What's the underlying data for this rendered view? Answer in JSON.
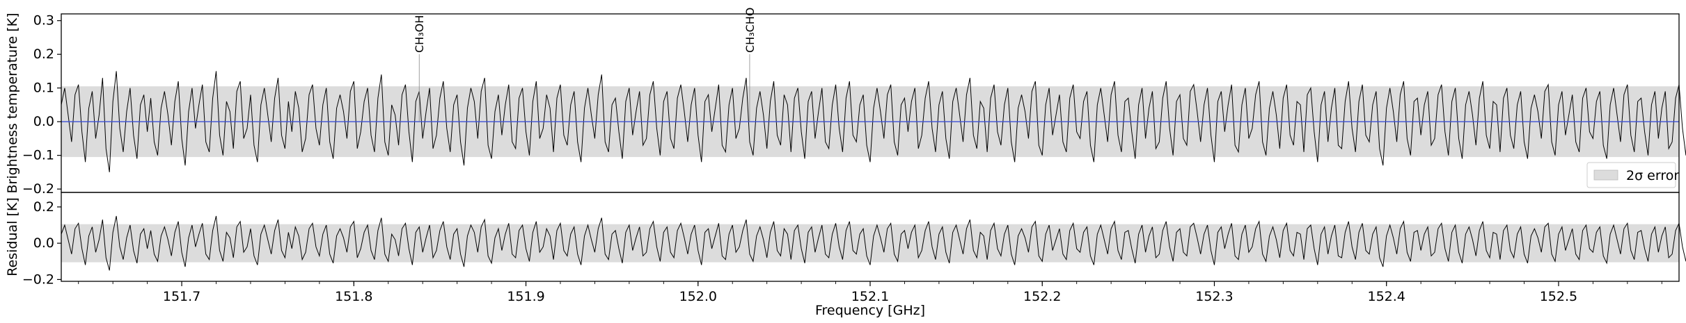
{
  "chart_data": [
    {
      "type": "line",
      "panel": "spectrum",
      "xlabel": "",
      "ylabel": "Brightness temperature [K]",
      "xlim": [
        151.63,
        152.57
      ],
      "ylim": [
        -0.21,
        0.32
      ],
      "yticks": [
        -0.2,
        -0.1,
        0.0,
        0.1,
        0.2,
        0.3
      ],
      "ytick_labels": [
        "−0.2",
        "−0.1",
        "0.0",
        "0.1",
        "0.2",
        "0.3"
      ],
      "error_band": [
        -0.105,
        0.105
      ],
      "legend": {
        "label": "2σ error",
        "placement": "lower-right"
      },
      "line_labels": [
        {
          "label": "CH₃OH",
          "x": 151.838
        },
        {
          "label": "CH₃CHO",
          "x": 152.03
        }
      ],
      "model_line": {
        "color": "#3b4fd6",
        "baseline": 0.0
      },
      "series": [
        {
          "color": "#000000",
          "x_start": 151.63,
          "x_step": 0.002,
          "values": [
            0.05,
            0.1,
            0.02,
            -0.06,
            0.08,
            0.11,
            -0.03,
            -0.12,
            0.04,
            0.09,
            -0.05,
            0.02,
            0.13,
            -0.08,
            -0.15,
            0.06,
            0.15,
            -0.02,
            -0.09,
            0.03,
            0.1,
            -0.04,
            -0.11,
            0.05,
            0.08,
            -0.03,
            0.07,
            -0.06,
            -0.1,
            0.04,
            0.09,
            0.02,
            -0.07,
            0.06,
            0.12,
            -0.05,
            -0.13,
            0.03,
            0.1,
            -0.02,
            0.05,
            0.11,
            -0.06,
            -0.09,
            0.07,
            0.15,
            -0.04,
            -0.1,
            0.06,
            0.03,
            -0.08,
            0.09,
            0.12,
            -0.05,
            -0.02,
            0.08,
            -0.07,
            -0.12,
            0.05,
            0.1,
            0.02,
            -0.06,
            0.07,
            0.13,
            -0.04,
            -0.08,
            0.06,
            -0.03,
            0.09,
            0.04,
            -0.09,
            -0.05,
            0.08,
            0.11,
            -0.02,
            -0.07,
            0.05,
            0.1,
            -0.06,
            -0.11,
            0.04,
            0.08,
            0.03,
            -0.05,
            0.09,
            0.12,
            -0.08,
            -0.03,
            0.06,
            0.1,
            -0.04,
            -0.09,
            0.07,
            0.14,
            -0.06,
            -0.1,
            0.05,
            0.02,
            -0.07,
            0.08,
            0.11,
            -0.03,
            -0.12,
            0.06,
            0.09,
            -0.05,
            0.03,
            0.1,
            -0.08,
            -0.04,
            0.07,
            0.12,
            -0.02,
            -0.09,
            0.05,
            0.08,
            -0.06,
            -0.13,
            0.04,
            0.1,
            0.06,
            -0.05,
            0.09,
            0.13,
            -0.07,
            -0.11,
            0.03,
            0.08,
            -0.04,
            0.05,
            0.11,
            -0.06,
            -0.08,
            0.07,
            0.1,
            -0.03,
            -0.1,
            0.06,
            0.12,
            -0.05,
            -0.02,
            0.08,
            0.04,
            -0.09,
            0.07,
            0.11,
            -0.04,
            -0.07,
            0.05,
            0.09,
            -0.06,
            -0.12,
            0.04,
            0.1,
            0.02,
            -0.05,
            0.08,
            0.14,
            -0.06,
            -0.09,
            0.05,
            0.07,
            -0.03,
            -0.11,
            0.06,
            0.1,
            -0.04,
            0.03,
            0.09,
            -0.07,
            -0.05,
            0.08,
            0.12,
            -0.02,
            -0.1,
            0.06,
            0.09,
            -0.05,
            -0.08,
            0.07,
            0.11,
            0.03,
            -0.06,
            0.05,
            0.1,
            -0.04,
            -0.12,
            0.06,
            0.08,
            -0.03,
            0.04,
            0.11,
            -0.07,
            -0.09,
            0.05,
            0.1,
            -0.05,
            -0.02,
            0.07,
            0.13,
            -0.06,
            -0.1,
            0.04,
            0.09,
            0.02,
            -0.08,
            0.06,
            0.12,
            -0.04,
            -0.07,
            0.08,
            0.05,
            -0.09,
            0.07,
            0.1,
            -0.03,
            -0.11,
            0.06,
            0.09,
            -0.05,
            0.03,
            0.1,
            -0.06,
            -0.08,
            0.05,
            0.11,
            -0.02,
            -0.09,
            0.07,
            0.12,
            -0.04,
            -0.06,
            0.05,
            0.08,
            -0.07,
            -0.12,
            0.04,
            0.1,
            0.03,
            -0.05,
            0.08,
            0.11,
            -0.06,
            -0.1,
            0.05,
            0.07,
            -0.03,
            0.06,
            0.1,
            -0.08,
            -0.04,
            0.07,
            0.12,
            -0.02,
            -0.09,
            0.05,
            0.09,
            -0.05,
            -0.11,
            0.06,
            0.1,
            0.02,
            -0.06,
            0.08,
            0.13,
            -0.04,
            -0.08,
            0.06,
            0.04,
            -0.09,
            0.07,
            0.11,
            -0.03,
            -0.07,
            0.05,
            0.1,
            -0.06,
            -0.12,
            0.04,
            0.08,
            0.03,
            -0.05,
            0.09,
            0.12,
            -0.07,
            -0.1,
            0.05,
            0.1,
            -0.04,
            0.02,
            0.08,
            -0.06,
            -0.09,
            0.07,
            0.11,
            -0.03,
            -0.05,
            0.06,
            0.09,
            -0.07,
            -0.12,
            0.05,
            0.1,
            0.02,
            -0.06,
            0.08,
            0.12,
            -0.04,
            -0.09,
            0.06,
            0.07,
            -0.03,
            -0.11,
            0.05,
            0.1,
            -0.05,
            0.04,
            0.09,
            -0.08,
            -0.06,
            0.07,
            0.12,
            -0.02,
            -0.1,
            0.06,
            0.08,
            -0.05,
            -0.07,
            0.09,
            0.11,
            0.03,
            -0.06,
            0.05,
            0.1,
            -0.04,
            -0.12,
            0.06,
            0.09,
            -0.03,
            0.05,
            0.11,
            -0.07,
            -0.09,
            0.05,
            0.1,
            -0.05,
            -0.02,
            0.08,
            0.12,
            -0.06,
            -0.1,
            0.04,
            0.09,
            0.02,
            -0.08,
            0.07,
            0.11,
            -0.04,
            -0.07,
            0.06,
            0.05,
            -0.09,
            0.08,
            0.1,
            -0.03,
            -0.12,
            0.05,
            0.09,
            -0.06,
            0.04,
            0.1,
            -0.07,
            -0.08,
            0.06,
            0.12,
            -0.02,
            -0.09,
            0.06,
            0.11,
            -0.04,
            -0.06,
            0.05,
            0.09,
            -0.08,
            -0.13,
            0.04,
            0.1,
            0.03,
            -0.06,
            0.08,
            0.12,
            -0.05,
            -0.1,
            0.06,
            0.07,
            -0.04,
            0.05,
            0.09,
            -0.07,
            -0.05,
            0.08,
            0.11,
            -0.03,
            -0.1,
            0.06,
            0.1,
            -0.05,
            -0.11,
            0.05,
            0.09,
            0.02,
            -0.07,
            0.07,
            0.12,
            -0.04,
            -0.08,
            0.06,
            0.05,
            -0.09,
            0.07,
            0.1,
            -0.04,
            -0.08,
            0.05,
            0.09,
            -0.06,
            -0.11,
            0.04,
            0.08,
            0.03,
            -0.05,
            0.09,
            0.11,
            -0.06,
            -0.1,
            0.05,
            0.09,
            -0.04,
            0.02,
            0.08,
            -0.06,
            -0.09,
            0.07,
            0.1,
            -0.03,
            -0.05,
            0.06,
            0.09,
            -0.07,
            -0.11,
            0.05,
            0.1,
            0.02,
            -0.06,
            0.08,
            0.11,
            -0.04,
            -0.09,
            0.06,
            0.07,
            -0.03,
            -0.1,
            0.05,
            0.09,
            -0.05,
            0.04,
            0.09,
            -0.08,
            -0.06,
            0.07,
            0.11,
            -0.02,
            -0.1,
            0.06,
            0.08,
            -0.05,
            -0.07,
            0.08,
            0.1,
            0.03,
            -0.06,
            0.05,
            0.09
          ]
        }
      ]
    },
    {
      "type": "line",
      "panel": "residual",
      "xlabel": "Frequency [GHz]",
      "ylabel": "Residual [K]",
      "xlim": [
        151.63,
        152.57
      ],
      "ylim": [
        -0.21,
        0.28
      ],
      "yticks": [
        -0.2,
        0.0,
        0.2
      ],
      "ytick_labels": [
        "−0.2",
        "0.0",
        "0.2"
      ],
      "xticks": [
        151.7,
        151.8,
        151.9,
        152.0,
        152.1,
        152.2,
        152.3,
        152.4,
        152.5
      ],
      "xtick_labels": [
        "151.7",
        "151.8",
        "151.9",
        "152.0",
        "152.1",
        "152.2",
        "152.3",
        "152.4",
        "152.5"
      ],
      "error_band": [
        -0.105,
        0.105
      ],
      "series": [
        {
          "color": "#000000",
          "x_start": 151.63,
          "x_step": 0.002,
          "values": [
            0.05,
            0.1,
            0.02,
            -0.06,
            0.08,
            0.11,
            -0.03,
            -0.12,
            0.04,
            0.09,
            -0.05,
            0.02,
            0.13,
            -0.08,
            -0.15,
            0.06,
            0.15,
            -0.02,
            -0.09,
            0.03,
            0.1,
            -0.04,
            -0.11,
            0.05,
            0.08,
            -0.03,
            0.07,
            -0.06,
            -0.1,
            0.04,
            0.09,
            0.02,
            -0.07,
            0.06,
            0.12,
            -0.05,
            -0.13,
            0.03,
            0.1,
            -0.02,
            0.05,
            0.11,
            -0.06,
            -0.09,
            0.07,
            0.15,
            -0.04,
            -0.1,
            0.06,
            0.03,
            -0.08,
            0.09,
            0.12,
            -0.05,
            -0.02,
            0.08,
            -0.07,
            -0.12,
            0.05,
            0.1,
            0.02,
            -0.06,
            0.07,
            0.13,
            -0.04,
            -0.08,
            0.06,
            -0.03,
            0.09,
            0.04,
            -0.09,
            -0.05,
            0.08,
            0.11,
            -0.02,
            -0.07,
            0.05,
            0.1,
            -0.06,
            -0.11,
            0.04,
            0.08,
            0.03,
            -0.05,
            0.09,
            0.12,
            -0.08,
            -0.03,
            0.06,
            0.1,
            -0.04,
            -0.09,
            0.07,
            0.14,
            -0.06,
            -0.1,
            0.05,
            0.02,
            -0.07,
            0.08,
            0.11,
            -0.03,
            -0.12,
            0.06,
            0.09,
            -0.05,
            0.03,
            0.1,
            -0.08,
            -0.04,
            0.07,
            0.12,
            -0.02,
            -0.09,
            0.05,
            0.08,
            -0.06,
            -0.13,
            0.04,
            0.1,
            0.06,
            -0.05,
            0.09,
            0.13,
            -0.07,
            -0.11,
            0.03,
            0.08,
            -0.04,
            0.05,
            0.11,
            -0.06,
            -0.08,
            0.07,
            0.1,
            -0.03,
            -0.1,
            0.06,
            0.12,
            -0.05,
            -0.02,
            0.08,
            0.04,
            -0.09,
            0.07,
            0.11,
            -0.04,
            -0.07,
            0.05,
            0.09,
            -0.06,
            -0.12,
            0.04,
            0.1,
            0.02,
            -0.05,
            0.08,
            0.14,
            -0.06,
            -0.09,
            0.05,
            0.07,
            -0.03,
            -0.11,
            0.06,
            0.1,
            -0.04,
            0.03,
            0.09,
            -0.07,
            -0.05,
            0.08,
            0.12,
            -0.02,
            -0.1,
            0.06,
            0.09,
            -0.05,
            -0.08,
            0.07,
            0.11,
            0.03,
            -0.06,
            0.05,
            0.1,
            -0.04,
            -0.12,
            0.06,
            0.08,
            -0.03,
            0.04,
            0.11,
            -0.07,
            -0.09,
            0.05,
            0.1,
            -0.05,
            -0.02,
            0.07,
            0.13,
            -0.06,
            -0.1,
            0.04,
            0.09,
            0.02,
            -0.08,
            0.06,
            0.12,
            -0.04,
            -0.07,
            0.08,
            0.05,
            -0.09,
            0.07,
            0.1,
            -0.03,
            -0.11,
            0.06,
            0.09,
            -0.05,
            0.03,
            0.1,
            -0.06,
            -0.08,
            0.05,
            0.11,
            -0.02,
            -0.09,
            0.07,
            0.12,
            -0.04,
            -0.06,
            0.05,
            0.08,
            -0.07,
            -0.12,
            0.04,
            0.1,
            0.03,
            -0.05,
            0.08,
            0.11,
            -0.06,
            -0.1,
            0.05,
            0.07,
            -0.03,
            0.06,
            0.1,
            -0.08,
            -0.04,
            0.07,
            0.12,
            -0.02,
            -0.09,
            0.05,
            0.09,
            -0.05,
            -0.11,
            0.06,
            0.1,
            0.02,
            -0.06,
            0.08,
            0.13,
            -0.04,
            -0.08,
            0.06,
            0.04,
            -0.09,
            0.07,
            0.11,
            -0.03,
            -0.07,
            0.05,
            0.1,
            -0.06,
            -0.12,
            0.04,
            0.08,
            0.03,
            -0.05,
            0.09,
            0.12,
            -0.07,
            -0.1,
            0.05,
            0.1,
            -0.04,
            0.02,
            0.08,
            -0.06,
            -0.09,
            0.07,
            0.11,
            -0.03,
            -0.05,
            0.06,
            0.09,
            -0.07,
            -0.12,
            0.05,
            0.1,
            0.02,
            -0.06,
            0.08,
            0.12,
            -0.04,
            -0.09,
            0.06,
            0.07,
            -0.03,
            -0.11,
            0.05,
            0.1,
            -0.05,
            0.04,
            0.09,
            -0.08,
            -0.06,
            0.07,
            0.12,
            -0.02,
            -0.1,
            0.06,
            0.08,
            -0.05,
            -0.07,
            0.09,
            0.11,
            0.03,
            -0.06,
            0.05,
            0.1,
            -0.04,
            -0.12,
            0.06,
            0.09,
            -0.03,
            0.05,
            0.11,
            -0.07,
            -0.09,
            0.05,
            0.1,
            -0.05,
            -0.02,
            0.08,
            0.12,
            -0.06,
            -0.1,
            0.04,
            0.09,
            0.02,
            -0.08,
            0.07,
            0.11,
            -0.04,
            -0.07,
            0.06,
            0.05,
            -0.09,
            0.08,
            0.1,
            -0.03,
            -0.12,
            0.05,
            0.09,
            -0.06,
            0.04,
            0.1,
            -0.07,
            -0.08,
            0.06,
            0.12,
            -0.02,
            -0.09,
            0.06,
            0.11,
            -0.04,
            -0.06,
            0.05,
            0.09,
            -0.08,
            -0.13,
            0.04,
            0.1,
            0.03,
            -0.06,
            0.08,
            0.12,
            -0.05,
            -0.1,
            0.06,
            0.07,
            -0.04,
            0.05,
            0.09,
            -0.07,
            -0.05,
            0.08,
            0.11,
            -0.03,
            -0.1,
            0.06,
            0.1,
            -0.05,
            -0.11,
            0.05,
            0.09,
            0.02,
            -0.07,
            0.07,
            0.12,
            -0.04,
            -0.08,
            0.06,
            0.05,
            -0.09,
            0.07,
            0.1,
            -0.04,
            -0.08,
            0.05,
            0.09,
            -0.06,
            -0.11,
            0.04,
            0.08,
            0.03,
            -0.05,
            0.09,
            0.11,
            -0.06,
            -0.1,
            0.05,
            0.09,
            -0.04,
            0.02,
            0.08,
            -0.06,
            -0.09,
            0.07,
            0.1,
            -0.03,
            -0.05,
            0.06,
            0.09,
            -0.07,
            -0.11,
            0.05,
            0.1,
            0.02,
            -0.06,
            0.08,
            0.11,
            -0.04,
            -0.09,
            0.06,
            0.07,
            -0.03,
            -0.1,
            0.05,
            0.09,
            -0.05,
            0.04,
            0.09,
            -0.08,
            -0.06,
            0.07,
            0.11,
            -0.02,
            -0.1,
            0.06,
            0.08,
            -0.05,
            -0.07,
            0.08,
            0.1,
            0.03,
            -0.06,
            0.05,
            0.09
          ]
        }
      ]
    }
  ]
}
